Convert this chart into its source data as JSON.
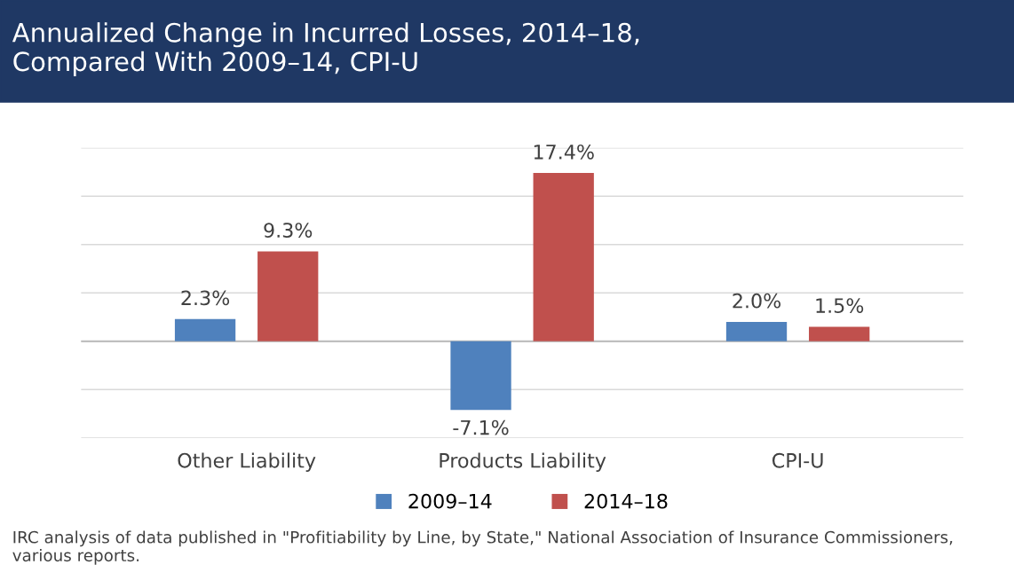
{
  "chart_data": {
    "type": "bar",
    "title": "Annualized Change in Incurred Losses, 2014–18,\nCompared With 2009–14, CPI-U",
    "categories": [
      "Other Liability",
      "Products Liability",
      "CPI-U"
    ],
    "series": [
      {
        "name": "2009–14",
        "color": "#4f81bd",
        "values": [
          2.3,
          -7.1,
          2.0
        ],
        "value_labels": [
          "2.3%",
          "-7.1%",
          "2.0%"
        ]
      },
      {
        "name": "2014–18",
        "color": "#c0504d",
        "values": [
          9.3,
          17.4,
          1.5
        ],
        "value_labels": [
          "9.3%",
          "17.4%",
          "1.5%"
        ]
      }
    ],
    "ylim": [
      -10,
      20
    ],
    "yticks": [
      {
        "value": -10,
        "label": null
      },
      {
        "value": -5,
        "label": null
      },
      {
        "value": 0,
        "label": null
      },
      {
        "value": 5,
        "label": null
      },
      {
        "value": 10,
        "label": null
      },
      {
        "value": 15,
        "label": null
      },
      {
        "value": 20,
        "label": null
      }
    ],
    "tick_labels": "x",
    "grid": "y",
    "legend": "bottom",
    "annotations": [
      "IRC analysis of data published in \"Profitiability by Line, by State,\" National Association of Insurance Commissioners, various reports."
    ]
  }
}
